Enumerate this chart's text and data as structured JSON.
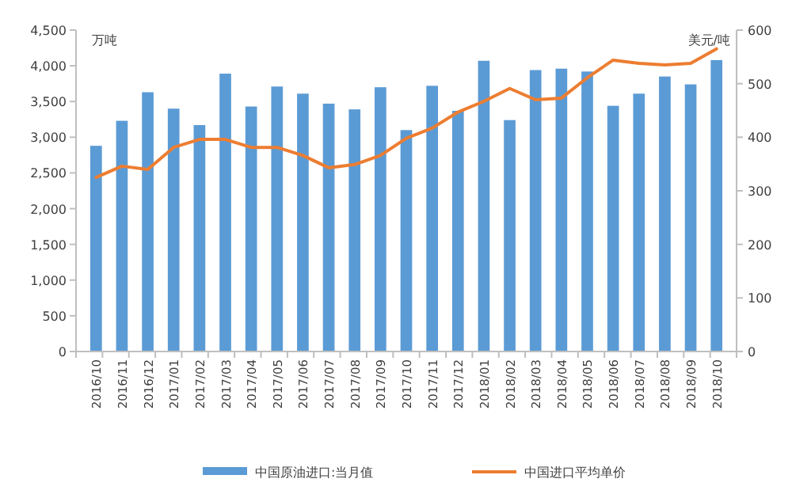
{
  "chart_data": {
    "type": "bar",
    "ylabel": "万吨",
    "y2label": "美元/吨",
    "categories": [
      "2016/10",
      "2016/11",
      "2016/12",
      "2017/01",
      "2017/02",
      "2017/03",
      "2017/04",
      "2017/05",
      "2017/06",
      "2017/07",
      "2017/08",
      "2017/09",
      "2017/10",
      "2017/11",
      "2017/12",
      "2018/01",
      "2018/02",
      "2018/03",
      "2018/04",
      "2018/05",
      "2018/06",
      "2018/07",
      "2018/08",
      "2018/09",
      "2018/10"
    ],
    "series": [
      {
        "name": "中国原油进口:当月值",
        "color": "#5b9bd5",
        "values": [
          2880,
          3230,
          3630,
          3400,
          3170,
          3890,
          3430,
          3710,
          3610,
          3470,
          3390,
          3700,
          3100,
          3720,
          3370,
          4070,
          3240,
          3940,
          3960,
          3920,
          3440,
          3610,
          3850,
          3740,
          4080
        ]
      },
      {
        "name": "中国进口平均单价",
        "type": "line",
        "axis": "y2",
        "color": "#ed7d31",
        "values": [
          325,
          346,
          340,
          381,
          396,
          396,
          381,
          381,
          366,
          343,
          349,
          366,
          398,
          417,
          447,
          467,
          491,
          470,
          473,
          511,
          544,
          538,
          535,
          538,
          565
        ]
      }
    ],
    "ylim": [
      0,
      4500
    ],
    "yticks": [
      {
        "value": 0,
        "label": "0"
      },
      {
        "value": 500,
        "label": "500"
      },
      {
        "value": 1000,
        "label": "1,000"
      },
      {
        "value": 1500,
        "label": "1,500"
      },
      {
        "value": 2000,
        "label": "2,000"
      },
      {
        "value": 2500,
        "label": "2,500"
      },
      {
        "value": 3000,
        "label": "3,000"
      },
      {
        "value": 3500,
        "label": "3,500"
      },
      {
        "value": 4000,
        "label": "4,000"
      },
      {
        "value": 4500,
        "label": "4,500"
      }
    ],
    "y2lim": [
      0,
      600
    ],
    "y2ticks": [
      0,
      100,
      200,
      300,
      400,
      500,
      600
    ],
    "grid": false,
    "legend": "bottom",
    "line_style": "solid",
    "marker": "none"
  }
}
